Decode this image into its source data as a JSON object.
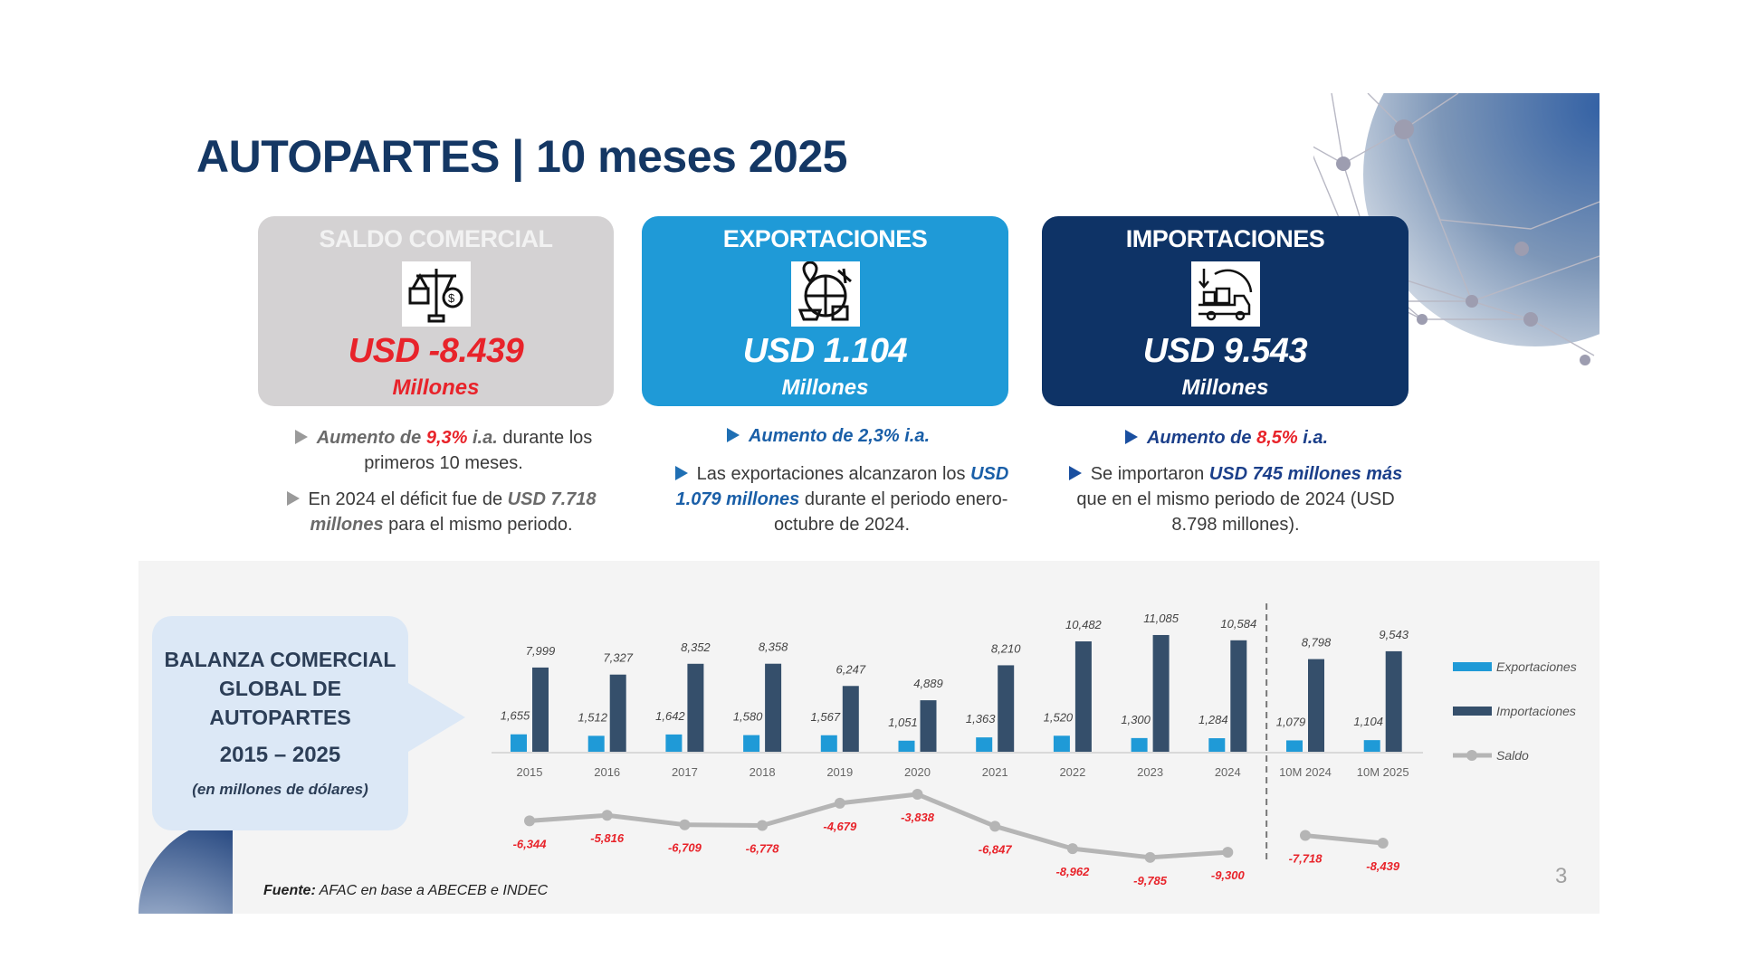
{
  "title": "AUTOPARTES | 10 meses 2025",
  "cards": {
    "saldo": {
      "title": "SALDO COMERCIAL",
      "value": "USD -8.439",
      "unit": "Millones",
      "icon": "balance-scale-dollar-icon"
    },
    "exportaciones": {
      "title": "EXPORTACIONES",
      "value": "USD 1.104",
      "unit": "Millones",
      "icon": "global-export-icon"
    },
    "importaciones": {
      "title": "IMPORTACIONES",
      "value": "USD 9.543",
      "unit": "Millones",
      "icon": "import-truck-icon"
    }
  },
  "bullets": {
    "saldo": {
      "b1": {
        "p1": "Aumento de ",
        "p2": "9,3%",
        "p3": " i.a.",
        "p4": " durante los primeros 10 meses."
      },
      "b2": {
        "p1": "En 2024 el déficit fue de ",
        "p2": "USD 7.718 millones",
        "p3": " para el mismo periodo."
      }
    },
    "exportaciones": {
      "b1": {
        "p1": "Aumento de 2,3% i.a."
      },
      "b2": {
        "p1": "Las exportaciones alcanzaron los ",
        "p2": "USD 1.079 millones",
        "p3": " durante el periodo enero-octubre de 2024."
      }
    },
    "importaciones": {
      "b1": {
        "p1": "Aumento de ",
        "p2": "8,5%",
        "p3": " i.a."
      },
      "b2": {
        "p1": "Se importaron ",
        "p2": "USD 745 millones más",
        "p3": " que en el mismo periodo de 2024 (USD 8.798 millones)."
      }
    }
  },
  "leftbox": {
    "title": "BALANZA COMERCIAL GLOBAL DE AUTOPARTES",
    "years": "2015 – 2025",
    "subtitle": "(en millones de dólares)"
  },
  "chart_data": {
    "type": "bar",
    "categories": [
      "2015",
      "2016",
      "2017",
      "2018",
      "2019",
      "2020",
      "2021",
      "2022",
      "2023",
      "2024",
      "10M 2024",
      "10M 2025"
    ],
    "series": [
      {
        "name": "Exportaciones",
        "type": "bar",
        "color": "#1f9ad7",
        "values": [
          1655,
          1512,
          1642,
          1580,
          1567,
          1051,
          1363,
          1520,
          1300,
          1284,
          1079,
          1104
        ],
        "labels": [
          "1,655",
          "1,512",
          "1,642",
          "1,580",
          "1,567",
          "1,051",
          "1,363",
          "1,520",
          "1,300",
          "1,284",
          "1,079",
          "1,104"
        ]
      },
      {
        "name": "Importaciones",
        "type": "bar",
        "color": "#354f6b",
        "values": [
          7999,
          7327,
          8352,
          8358,
          6247,
          4889,
          8210,
          10482,
          11085,
          10584,
          8798,
          9543
        ],
        "labels": [
          "7,999",
          "7,327",
          "8,352",
          "8,358",
          "6,247",
          "4,889",
          "8,210",
          "10,482",
          "11,085",
          "10,584",
          "8,798",
          "9,543"
        ]
      },
      {
        "name": "Saldo",
        "type": "line",
        "color": "#b5b5b5",
        "label_color": "#e8232a",
        "values": [
          -6344,
          -5816,
          -6709,
          -6778,
          -4679,
          -3838,
          -6847,
          -8962,
          -9785,
          -9300,
          -7718,
          -8439
        ],
        "labels": [
          "-6,344",
          "-5,816",
          "-6,709",
          "-6,778",
          "-4,679",
          "-3,838",
          "-6,847",
          "-8,962",
          "-9,785",
          "-9,300",
          "-7,718",
          "-8,439"
        ]
      }
    ],
    "separator_after": "2024",
    "legend": "right",
    "grid": false
  },
  "source": {
    "label": "Fuente:",
    "text": " AFAC en base a ABECEB e INDEC"
  },
  "page_number": "3"
}
